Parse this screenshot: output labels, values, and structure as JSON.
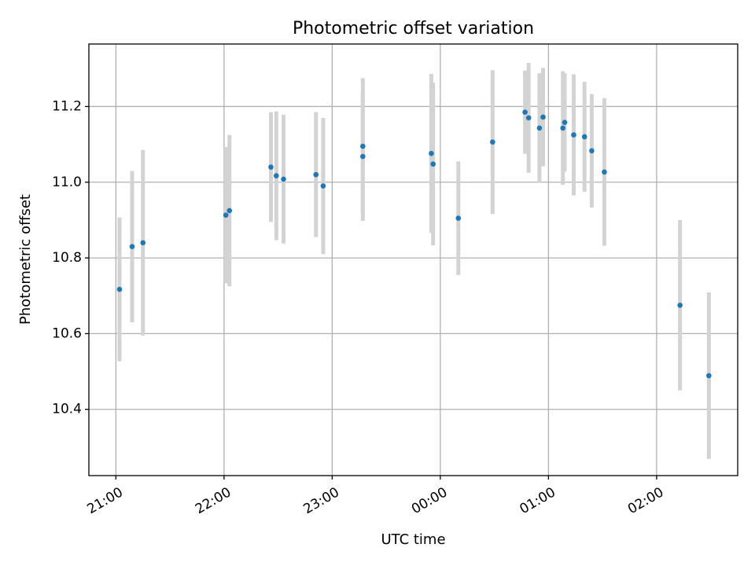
{
  "chart_data": {
    "type": "scatter",
    "title": "Photometric offset variation",
    "xlabel": "UTC time",
    "ylabel": "Photometric offset",
    "xlim": [
      "20:45",
      "02:45"
    ],
    "ylim": [
      10.225,
      11.365
    ],
    "x_ticks": [
      "21:00",
      "22:00",
      "23:00",
      "00:00",
      "01:00",
      "02:00"
    ],
    "y_ticks": [
      "10.4",
      "10.6",
      "10.8",
      "11.0",
      "11.2"
    ],
    "grid": true,
    "legend": "none",
    "colors": {
      "point": "#1f77b4",
      "errorbar": "#d3d3d3",
      "grid": "#b0b0b0"
    },
    "points": [
      {
        "x": "21:02",
        "y": 10.717,
        "err": 0.19
      },
      {
        "x": "21:09",
        "y": 10.83,
        "err": 0.2
      },
      {
        "x": "21:15",
        "y": 10.84,
        "err": 0.245
      },
      {
        "x": "22:01",
        "y": 10.913,
        "err": 0.18
      },
      {
        "x": "22:03",
        "y": 10.925,
        "err": 0.2
      },
      {
        "x": "22:26",
        "y": 11.04,
        "err": 0.145
      },
      {
        "x": "22:29",
        "y": 11.017,
        "err": 0.17
      },
      {
        "x": "22:33",
        "y": 11.008,
        "err": 0.17
      },
      {
        "x": "22:51",
        "y": 11.02,
        "err": 0.165
      },
      {
        "x": "22:55",
        "y": 10.99,
        "err": 0.18
      },
      {
        "x": "23:17",
        "y": 11.095,
        "err": 0.18
      },
      {
        "x": "23:17",
        "y": 11.068,
        "err": 0.17
      },
      {
        "x": "23:55",
        "y": 11.076,
        "err": 0.21
      },
      {
        "x": "23:56",
        "y": 11.048,
        "err": 0.215
      },
      {
        "x": "00:10",
        "y": 10.905,
        "err": 0.15
      },
      {
        "x": "00:29",
        "y": 11.106,
        "err": 0.19
      },
      {
        "x": "00:47",
        "y": 11.185,
        "err": 0.11
      },
      {
        "x": "00:49",
        "y": 11.17,
        "err": 0.145
      },
      {
        "x": "00:55",
        "y": 11.143,
        "err": 0.145
      },
      {
        "x": "00:57",
        "y": 11.172,
        "err": 0.13
      },
      {
        "x": "01:08",
        "y": 11.143,
        "err": 0.15
      },
      {
        "x": "01:09",
        "y": 11.158,
        "err": 0.13
      },
      {
        "x": "01:14",
        "y": 11.125,
        "err": 0.16
      },
      {
        "x": "01:20",
        "y": 11.12,
        "err": 0.145
      },
      {
        "x": "01:24",
        "y": 11.083,
        "err": 0.15
      },
      {
        "x": "01:31",
        "y": 11.027,
        "err": 0.195
      },
      {
        "x": "02:13",
        "y": 10.675,
        "err": 0.225
      },
      {
        "x": "02:29",
        "y": 10.489,
        "err": 0.22
      }
    ]
  }
}
